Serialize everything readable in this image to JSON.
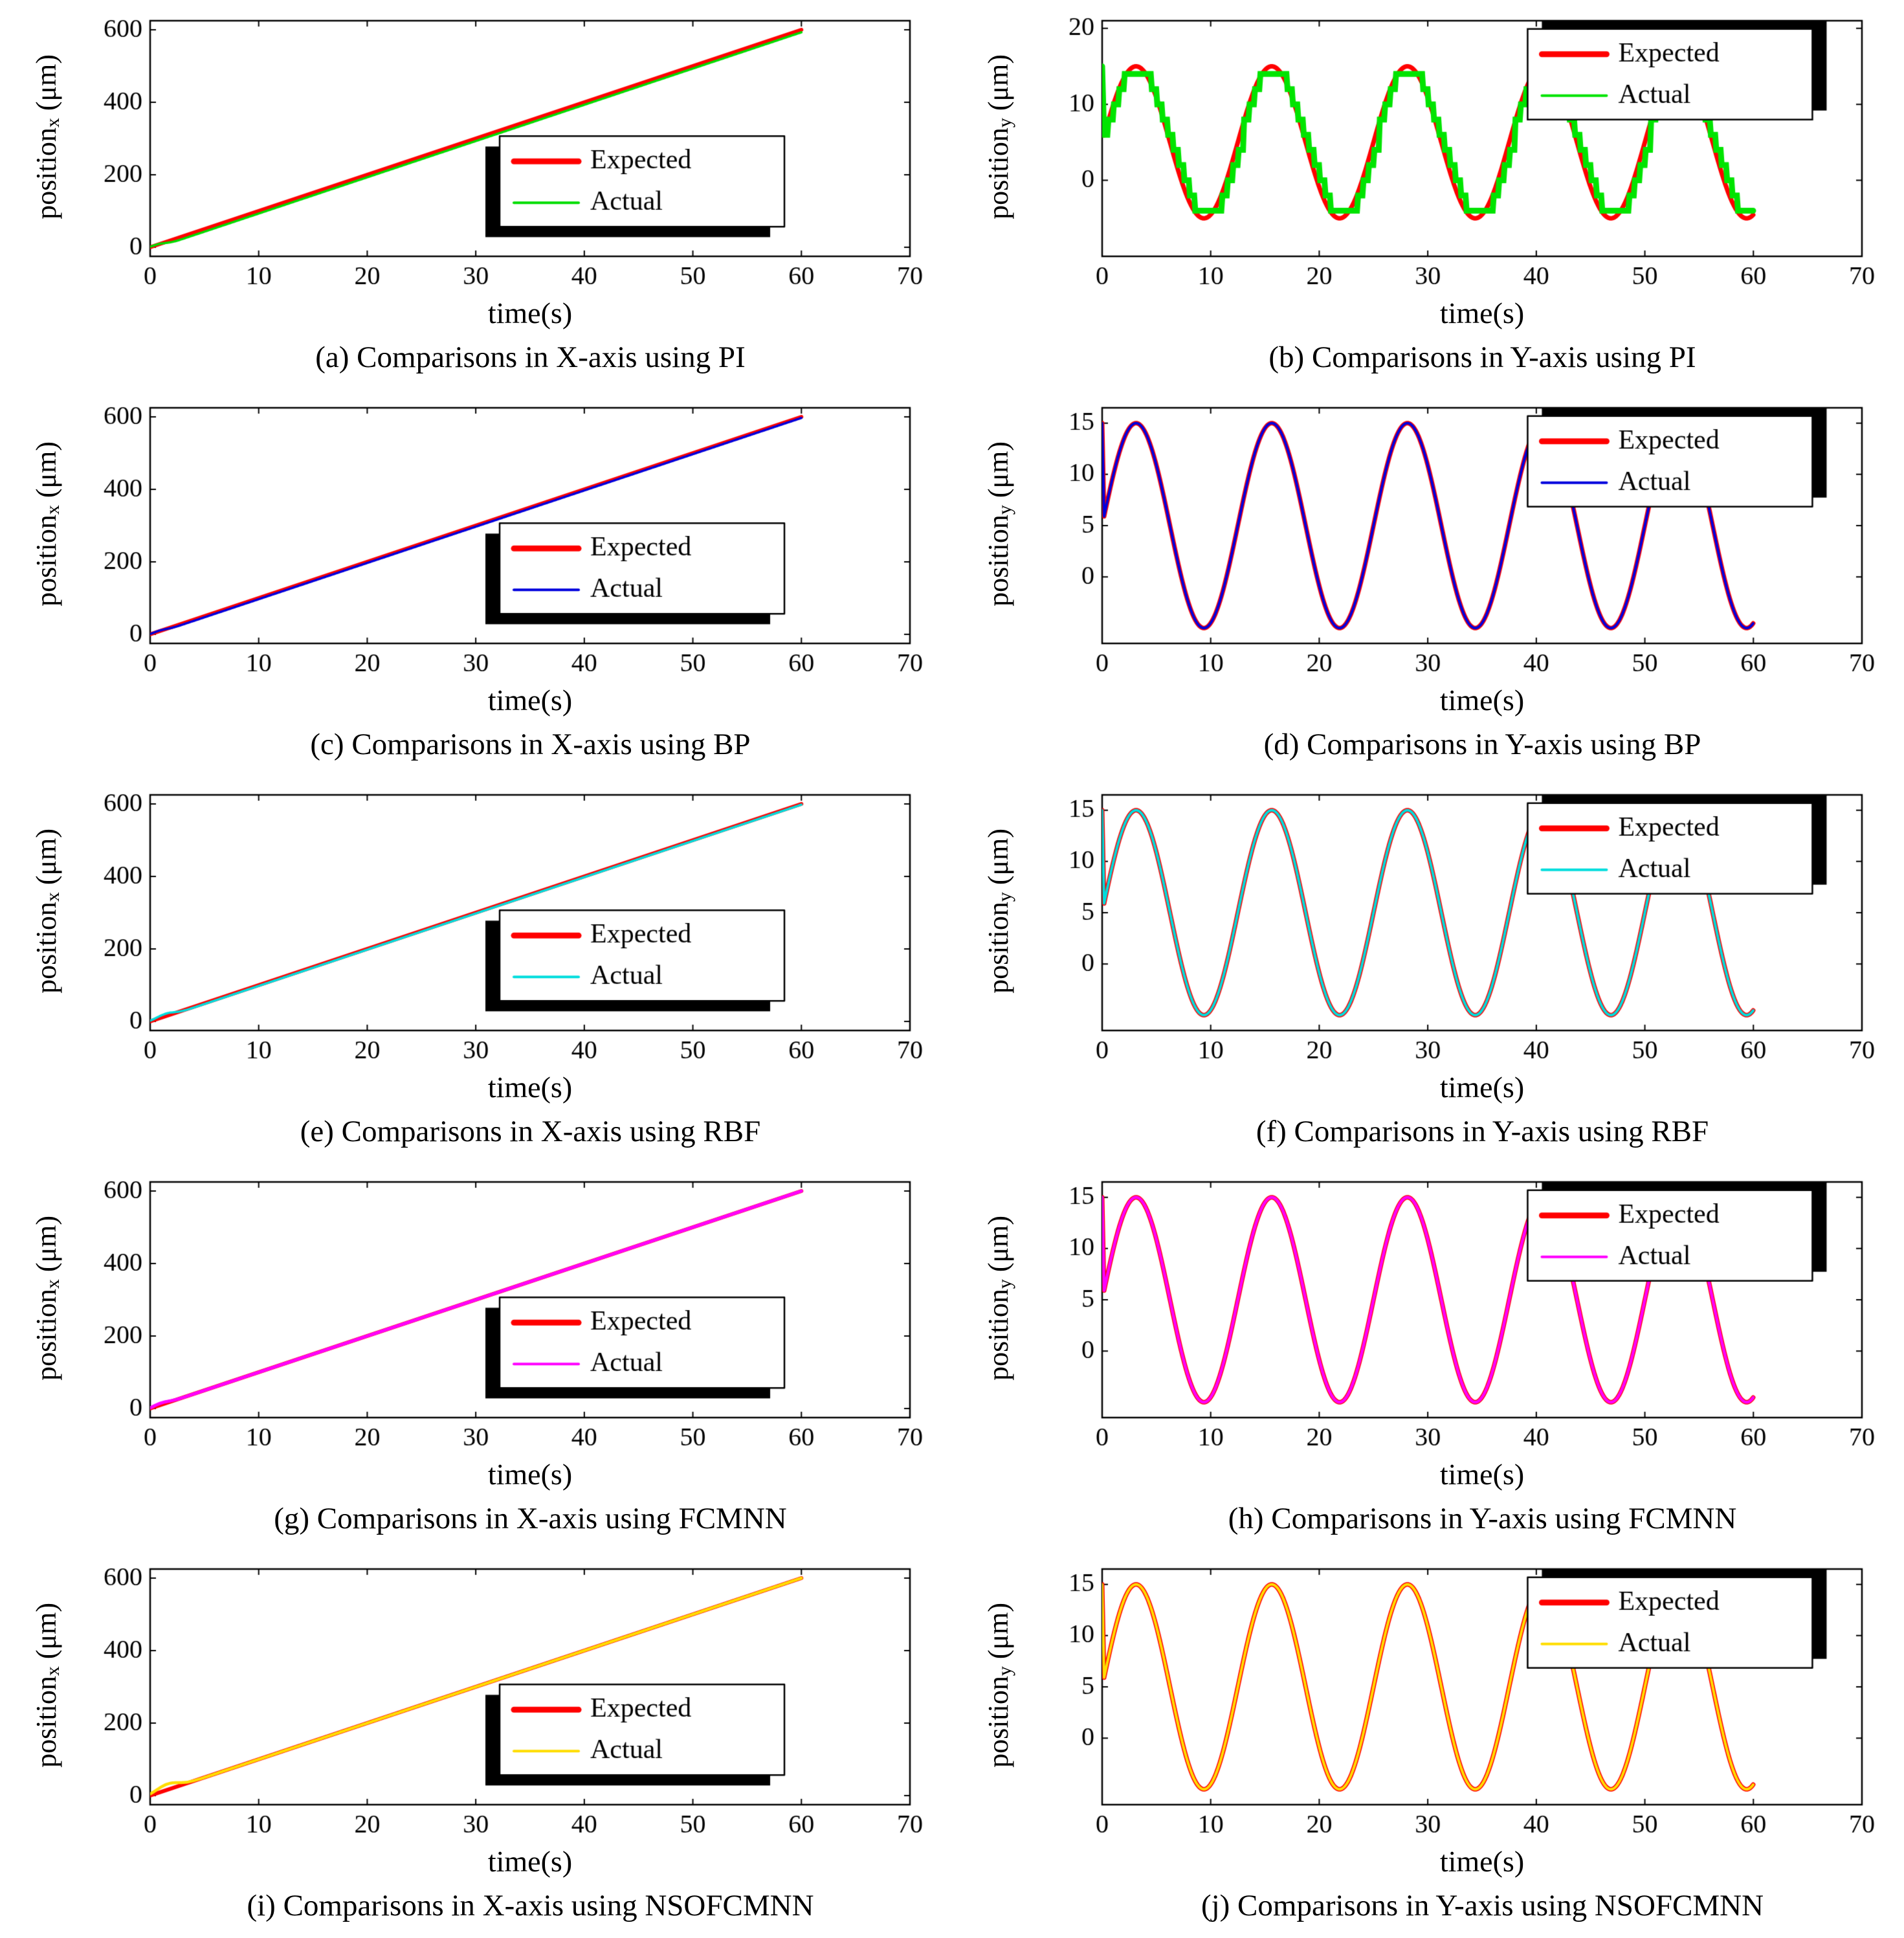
{
  "chart_data": [
    {
      "id": "a",
      "type": "line",
      "axis": "X",
      "controller": "PI",
      "caption": "(a) Comparisons in X-axis using PI",
      "xlabel": "time(s)",
      "ylabel": {
        "main": "position",
        "sub": "x",
        "unit": " (μm)"
      },
      "xlim": [
        0,
        70
      ],
      "xticks": [
        0,
        10,
        20,
        30,
        40,
        50,
        60,
        70
      ],
      "ylim": [
        -25,
        625
      ],
      "yticks": [
        0,
        200,
        400,
        600
      ],
      "legend": {
        "labels": [
          "Expected",
          "Actual"
        ],
        "x": 0.46,
        "y": 0.49
      },
      "series": [
        {
          "name": "Expected",
          "color": "#ff0000",
          "width": 6,
          "gen": "line",
          "points": [
            [
              0,
              0
            ],
            [
              60,
              600
            ]
          ]
        },
        {
          "name": "Actual",
          "color": "#00dd00",
          "width": 3.5,
          "gen": "ramp",
          "rate": 10,
          "t_end": 60,
          "dy": -7,
          "bump": {
            "amp": 6,
            "center": 1.0,
            "sigma": 0.6
          }
        }
      ]
    },
    {
      "id": "b",
      "type": "line",
      "axis": "Y",
      "controller": "PI",
      "caption": "(b) Comparisons in Y-axis using PI",
      "xlabel": "time(s)",
      "ylabel": {
        "main": "position",
        "sub": "y",
        "unit": " (μm)"
      },
      "xlim": [
        0,
        70
      ],
      "xticks": [
        0,
        10,
        20,
        30,
        40,
        50,
        60,
        70
      ],
      "ylim": [
        -10,
        21
      ],
      "yticks": [
        0,
        10,
        20
      ],
      "legend": {
        "labels": [
          "Expected",
          "Actual"
        ],
        "x": 0.56,
        "y": 0.035
      },
      "series": [
        {
          "name": "Expected",
          "color": "#ff0000",
          "width": 7,
          "gen": "sine",
          "offset": 5,
          "amp": 10,
          "period": 12.5,
          "t_end": 60,
          "start_value": 15
        },
        {
          "name": "Actual",
          "color": "#00e400",
          "width": 9,
          "gen": "sine_steps",
          "offset": 5,
          "amp": 10,
          "period": 12.5,
          "t_end": 60,
          "t_step": 0.5,
          "y_step": 2,
          "start_value": 15
        }
      ]
    },
    {
      "id": "c",
      "type": "line",
      "axis": "X",
      "controller": "BP",
      "caption": "(c) Comparisons in X-axis using BP",
      "xlabel": "time(s)",
      "ylabel": {
        "main": "position",
        "sub": "x",
        "unit": " (μm)"
      },
      "xlim": [
        0,
        70
      ],
      "xticks": [
        0,
        10,
        20,
        30,
        40,
        50,
        60,
        70
      ],
      "ylim": [
        -25,
        625
      ],
      "yticks": [
        0,
        200,
        400,
        600
      ],
      "legend": {
        "labels": [
          "Expected",
          "Actual"
        ],
        "x": 0.46,
        "y": 0.49
      },
      "series": [
        {
          "name": "Expected",
          "color": "#ff0000",
          "width": 6,
          "gen": "line",
          "points": [
            [
              0,
              0
            ],
            [
              60,
              600
            ]
          ]
        },
        {
          "name": "Actual",
          "color": "#0000dd",
          "width": 3.5,
          "gen": "ramp",
          "rate": 10,
          "t_end": 60,
          "dy": -3,
          "bump": {
            "amp": 4,
            "center": 1.0,
            "sigma": 0.6
          }
        }
      ]
    },
    {
      "id": "d",
      "type": "line",
      "axis": "Y",
      "controller": "BP",
      "caption": "(d) Comparisons in Y-axis using BP",
      "xlabel": "time(s)",
      "ylabel": {
        "main": "position",
        "sub": "y",
        "unit": " (μm)"
      },
      "xlim": [
        0,
        70
      ],
      "xticks": [
        0,
        10,
        20,
        30,
        40,
        50,
        60,
        70
      ],
      "ylim": [
        -6.5,
        16.5
      ],
      "yticks": [
        0,
        5,
        10,
        15
      ],
      "legend": {
        "labels": [
          "Expected",
          "Actual"
        ],
        "x": 0.56,
        "y": 0.035
      },
      "series": [
        {
          "name": "Expected",
          "color": "#ff0000",
          "width": 7,
          "gen": "sine",
          "offset": 5,
          "amp": 10,
          "period": 12.5,
          "t_end": 60,
          "start_value": 15
        },
        {
          "name": "Actual",
          "color": "#0000dd",
          "width": 4,
          "gen": "sine",
          "offset": 5,
          "amp": 10,
          "period": 12.5,
          "t_end": 60,
          "start_value": 15
        }
      ]
    },
    {
      "id": "e",
      "type": "line",
      "axis": "X",
      "controller": "RBF",
      "caption": "(e) Comparisons in X-axis using RBF",
      "xlabel": "time(s)",
      "ylabel": {
        "main": "position",
        "sub": "x",
        "unit": " (μm)"
      },
      "xlim": [
        0,
        70
      ],
      "xticks": [
        0,
        10,
        20,
        30,
        40,
        50,
        60,
        70
      ],
      "ylim": [
        -25,
        625
      ],
      "yticks": [
        0,
        200,
        400,
        600
      ],
      "legend": {
        "labels": [
          "Expected",
          "Actual"
        ],
        "x": 0.46,
        "y": 0.49
      },
      "series": [
        {
          "name": "Expected",
          "color": "#ff0000",
          "width": 6,
          "gen": "line",
          "points": [
            [
              0,
              0
            ],
            [
              60,
              600
            ]
          ]
        },
        {
          "name": "Actual",
          "color": "#00dddd",
          "width": 3.5,
          "gen": "ramp",
          "rate": 10,
          "t_end": 60,
          "dy": -2,
          "bump": {
            "amp": 9,
            "center": 1.4,
            "sigma": 0.8
          }
        }
      ]
    },
    {
      "id": "f",
      "type": "line",
      "axis": "Y",
      "controller": "RBF",
      "caption": "(f) Comparisons in Y-axis using RBF",
      "xlabel": "time(s)",
      "ylabel": {
        "main": "position",
        "sub": "y",
        "unit": " (μm)"
      },
      "xlim": [
        0,
        70
      ],
      "xticks": [
        0,
        10,
        20,
        30,
        40,
        50,
        60,
        70
      ],
      "ylim": [
        -6.5,
        16.5
      ],
      "yticks": [
        0,
        5,
        10,
        15
      ],
      "legend": {
        "labels": [
          "Expected",
          "Actual"
        ],
        "x": 0.56,
        "y": 0.035
      },
      "series": [
        {
          "name": "Expected",
          "color": "#ff0000",
          "width": 7,
          "gen": "sine",
          "offset": 5,
          "amp": 10,
          "period": 12.5,
          "t_end": 60,
          "start_value": 15
        },
        {
          "name": "Actual",
          "color": "#00dddd",
          "width": 4,
          "gen": "sine",
          "offset": 5,
          "amp": 10,
          "period": 12.5,
          "t_end": 60,
          "start_value": 15
        }
      ]
    },
    {
      "id": "g",
      "type": "line",
      "axis": "X",
      "controller": "FCMNN",
      "caption": "(g) Comparisons in X-axis using FCMNN",
      "xlabel": "time(s)",
      "ylabel": {
        "main": "position",
        "sub": "x",
        "unit": " (μm)"
      },
      "xlim": [
        0,
        70
      ],
      "xticks": [
        0,
        10,
        20,
        30,
        40,
        50,
        60,
        70
      ],
      "ylim": [
        -25,
        625
      ],
      "yticks": [
        0,
        200,
        400,
        600
      ],
      "legend": {
        "labels": [
          "Expected",
          "Actual"
        ],
        "x": 0.46,
        "y": 0.49
      },
      "series": [
        {
          "name": "Expected",
          "color": "#ff0000",
          "width": 6,
          "gen": "line",
          "points": [
            [
              0,
              0
            ],
            [
              60,
              600
            ]
          ]
        },
        {
          "name": "Actual",
          "color": "#ff00ff",
          "width": 5,
          "gen": "ramp",
          "rate": 10,
          "t_end": 60,
          "dy": 0,
          "bump": {
            "amp": 5,
            "center": 1.0,
            "sigma": 0.7
          }
        }
      ]
    },
    {
      "id": "h",
      "type": "line",
      "axis": "Y",
      "controller": "FCMNN",
      "caption": "(h) Comparisons in Y-axis using FCMNN",
      "xlabel": "time(s)",
      "ylabel": {
        "main": "position",
        "sub": "y",
        "unit": " (μm)"
      },
      "xlim": [
        0,
        70
      ],
      "xticks": [
        0,
        10,
        20,
        30,
        40,
        50,
        60,
        70
      ],
      "ylim": [
        -6.5,
        16.5
      ],
      "yticks": [
        0,
        5,
        10,
        15
      ],
      "legend": {
        "labels": [
          "Expected",
          "Actual"
        ],
        "x": 0.56,
        "y": 0.035
      },
      "series": [
        {
          "name": "Expected",
          "color": "#ff0000",
          "width": 7,
          "gen": "sine",
          "offset": 5,
          "amp": 10,
          "period": 12.5,
          "t_end": 60,
          "start_value": 15
        },
        {
          "name": "Actual",
          "color": "#ff00ff",
          "width": 4.5,
          "gen": "sine",
          "offset": 5,
          "amp": 10,
          "period": 12.5,
          "t_end": 60,
          "start_value": 15
        }
      ]
    },
    {
      "id": "i",
      "type": "line",
      "axis": "X",
      "controller": "NSOFCMNN",
      "caption": "(i) Comparisons in X-axis using NSOFCMNN",
      "xlabel": "time(s)",
      "ylabel": {
        "main": "position",
        "sub": "x",
        "unit": " (μm)"
      },
      "xlim": [
        0,
        70
      ],
      "xticks": [
        0,
        10,
        20,
        30,
        40,
        50,
        60,
        70
      ],
      "ylim": [
        -25,
        625
      ],
      "yticks": [
        0,
        200,
        400,
        600
      ],
      "legend": {
        "labels": [
          "Expected",
          "Actual"
        ],
        "x": 0.46,
        "y": 0.49
      },
      "series": [
        {
          "name": "Expected",
          "color": "#ff0000",
          "width": 6,
          "gen": "line",
          "points": [
            [
              0,
              0
            ],
            [
              60,
              600
            ]
          ]
        },
        {
          "name": "Actual",
          "color": "#ffdd00",
          "width": 4.5,
          "gen": "ramp",
          "rate": 10,
          "t_end": 60,
          "dy": 0,
          "bump": {
            "amp": 16,
            "center": 1.6,
            "sigma": 1.0
          }
        }
      ]
    },
    {
      "id": "j",
      "type": "line",
      "axis": "Y",
      "controller": "NSOFCMNN",
      "caption": "(j) Comparisons in Y-axis using NSOFCMNN",
      "xlabel": "time(s)",
      "ylabel": {
        "main": "position",
        "sub": "y",
        "unit": " (μm)"
      },
      "xlim": [
        0,
        70
      ],
      "xticks": [
        0,
        10,
        20,
        30,
        40,
        50,
        60,
        70
      ],
      "ylim": [
        -6.5,
        16.5
      ],
      "yticks": [
        0,
        5,
        10,
        15
      ],
      "legend": {
        "labels": [
          "Expected",
          "Actual"
        ],
        "x": 0.56,
        "y": 0.035
      },
      "series": [
        {
          "name": "Expected",
          "color": "#ff0000",
          "width": 7,
          "gen": "sine",
          "offset": 5,
          "amp": 10,
          "period": 12.5,
          "t_end": 60,
          "start_value": 15
        },
        {
          "name": "Actual",
          "color": "#ffdd00",
          "width": 4,
          "gen": "sine",
          "offset": 5,
          "amp": 10,
          "period": 12.5,
          "t_end": 60,
          "start_value": 15
        }
      ]
    }
  ]
}
